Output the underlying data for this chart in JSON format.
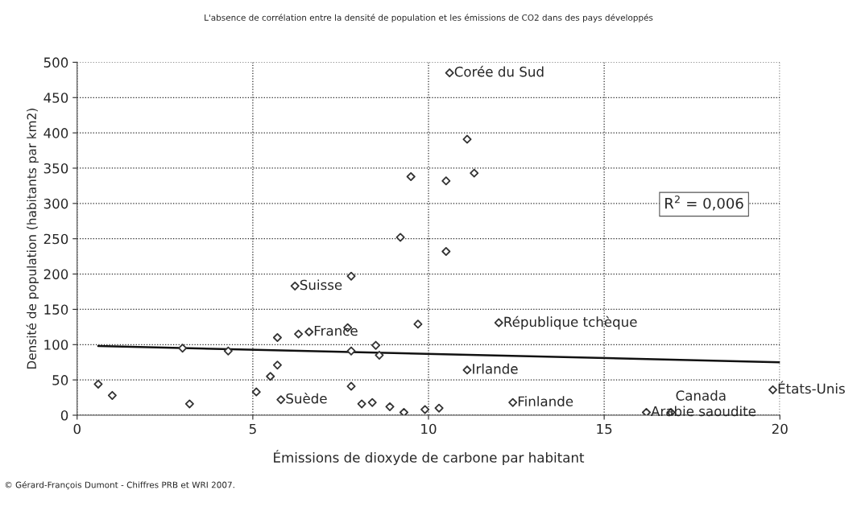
{
  "chart_data": {
    "type": "scatter",
    "title": "L'absence de corrélation entre la densité de population et les émissions de CO2 dans des pays développés",
    "xlabel": "Émissions de dioxyde de carbone par habitant",
    "ylabel": "Densité de population (habitants par km2)",
    "xlim": [
      0,
      20
    ],
    "xticks": [
      0,
      5,
      10,
      15,
      20
    ],
    "ylim": [
      0,
      500
    ],
    "yticks": [
      0,
      50,
      100,
      150,
      200,
      250,
      300,
      350,
      400,
      450,
      500
    ],
    "grid": true,
    "marker": "diamond",
    "series": [
      {
        "color": "#333333",
        "x": [
          0.6,
          1.0,
          3.2,
          3.0,
          4.3,
          5.1,
          5.5,
          5.7,
          5.7,
          5.8,
          6.2,
          6.3,
          6.6,
          7.7,
          7.8,
          7.8,
          7.8,
          8.1,
          8.4,
          8.5,
          8.6,
          8.9,
          9.2,
          9.3,
          9.5,
          9.7,
          9.9,
          10.3,
          10.5,
          10.5,
          10.6,
          11.1,
          11.1,
          11.3,
          12.0,
          12.4,
          16.2,
          16.9,
          19.8
        ],
        "values": [
          44,
          28,
          16,
          95,
          91,
          33,
          55,
          71,
          110,
          22,
          183,
          115,
          118,
          124,
          197,
          91,
          41,
          16,
          18,
          99,
          85,
          12,
          252,
          4,
          338,
          129,
          8,
          10,
          332,
          232,
          485,
          391,
          64,
          343,
          131,
          18,
          4,
          4,
          36
        ]
      },
      {
        "type": "line",
        "color": "#111111",
        "x": [
          0.6,
          20
        ],
        "values": [
          98,
          75
        ],
        "marker": "none"
      }
    ],
    "annotations": [
      {
        "text": "Corée du Sud",
        "x": 10.6,
        "y": 485
      },
      {
        "text": "Suisse",
        "x": 6.2,
        "y": 183
      },
      {
        "text": "France",
        "x": 6.6,
        "y": 118
      },
      {
        "text": "République tchèque",
        "x": 12.0,
        "y": 131
      },
      {
        "text": "Irlande",
        "x": 11.1,
        "y": 64
      },
      {
        "text": "Suède",
        "x": 5.8,
        "y": 22
      },
      {
        "text": "Finlande",
        "x": 12.4,
        "y": 18
      },
      {
        "text": "Arabie saoudite",
        "x": 16.2,
        "y": 4
      },
      {
        "text": "Canada",
        "x": 16.9,
        "y": 4
      },
      {
        "text": "États-Unis",
        "x": 19.8,
        "y": 36
      },
      "R$^{2}$ = 0,006",
      "© Gérard-François Dumont - Chiffres PRB et WRI 2007."
    ]
  }
}
